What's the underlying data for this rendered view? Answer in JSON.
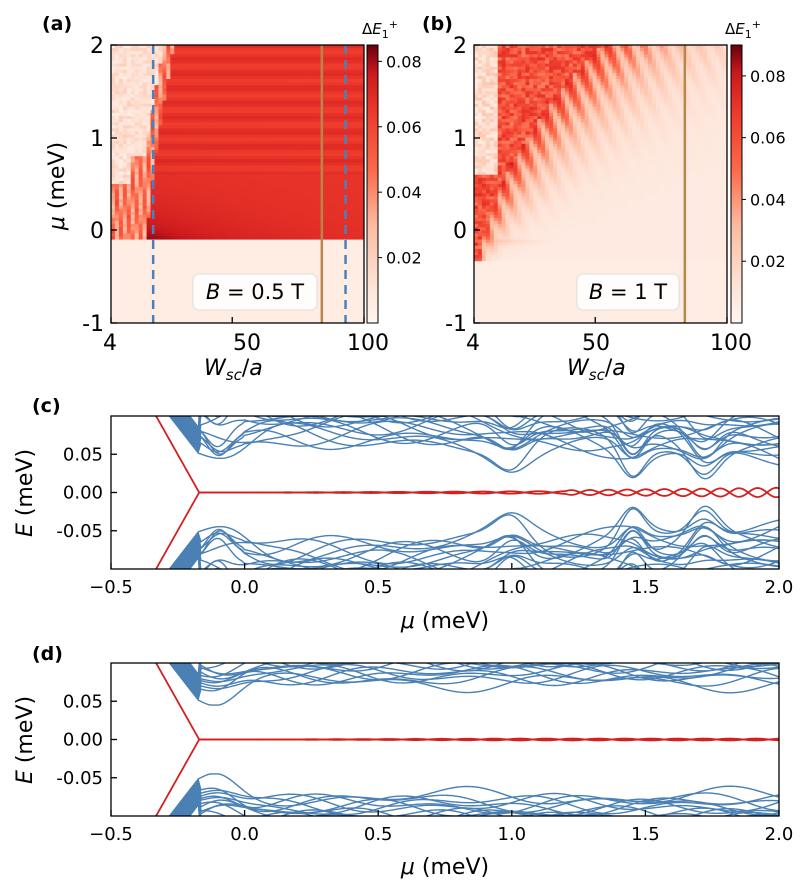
{
  "colors": {
    "heat_low": "#fff5f0",
    "heat_mid": "#fb6a4a",
    "heat_high": "#67000d",
    "blue_line": "#4a80b4",
    "red_line": "#d42020",
    "dashed_marker": "#4a80c0",
    "solid_marker": "#b8864a"
  },
  "chart_data": [
    {
      "panel": "(a)",
      "type": "heatmap",
      "xlabel": "W_sc/a",
      "ylabel": "μ (meV)",
      "xticks": [
        "4",
        "50",
        "100"
      ],
      "yticks": [
        "-1",
        "0",
        "1",
        "2"
      ],
      "xlim": [
        4,
        100
      ],
      "ylim": [
        -1,
        2
      ],
      "colorbar_label": "ΔE1+",
      "colorbar_ticks": [
        "0.02",
        "0.04",
        "0.06",
        "0.08"
      ],
      "colorbar_range": [
        0,
        0.085
      ],
      "annotation": "B = 0.5 T",
      "markers": [
        {
          "kind": "dashed",
          "x": 20
        },
        {
          "kind": "solid",
          "x": 84
        },
        {
          "kind": "dashed",
          "x": 93
        }
      ]
    },
    {
      "panel": "(b)",
      "type": "heatmap",
      "xlabel": "W_sc/a",
      "xticks": [
        "4",
        "50",
        "100"
      ],
      "yticks": [
        "-1",
        "0",
        "1",
        "2"
      ],
      "xlim": [
        4,
        100
      ],
      "ylim": [
        -1,
        2
      ],
      "colorbar_label": "ΔE1+",
      "colorbar_ticks": [
        "0.02",
        "0.04",
        "0.06",
        "0.08"
      ],
      "colorbar_range": [
        0,
        0.09
      ],
      "annotation": "B = 1 T",
      "markers": [
        {
          "kind": "solid",
          "x": 84
        }
      ]
    },
    {
      "panel": "(c)",
      "type": "line",
      "xlabel": "μ (meV)",
      "ylabel": "E (meV)",
      "xlim": [
        -0.5,
        2.0
      ],
      "ylim": [
        -0.1,
        0.1
      ],
      "xticks": [
        "−0.5",
        "0.0",
        "0.5",
        "1.0",
        "1.5",
        "2.0"
      ],
      "yticks": [
        "0.05",
        "0.00",
        "-0.05"
      ],
      "series": [
        {
          "group": "bulk",
          "color": "blue",
          "count": 18,
          "min_gap_at_0": 0.08,
          "min_gap_at_1": 0.05,
          "min_gap_at_1p5": 0.02
        },
        {
          "group": "lowest",
          "color": "red",
          "gap_closes_at": -0.17
        }
      ]
    },
    {
      "panel": "(d)",
      "type": "line",
      "xlabel": "μ (meV)",
      "ylabel": "E (meV)",
      "xlim": [
        -0.5,
        2.0
      ],
      "ylim": [
        -0.1,
        0.1
      ],
      "xticks": [
        "−0.5",
        "0.0",
        "0.5",
        "1.0",
        "1.5",
        "2.0"
      ],
      "yticks": [
        "0.05",
        "0.00",
        "-0.05"
      ],
      "series": [
        {
          "group": "bulk",
          "color": "blue",
          "count": 18,
          "min_gap_at_0": 0.07,
          "min_gap_at_2": 0.05
        },
        {
          "group": "lowest",
          "color": "red",
          "gap_closes_at": -0.17
        }
      ]
    }
  ]
}
